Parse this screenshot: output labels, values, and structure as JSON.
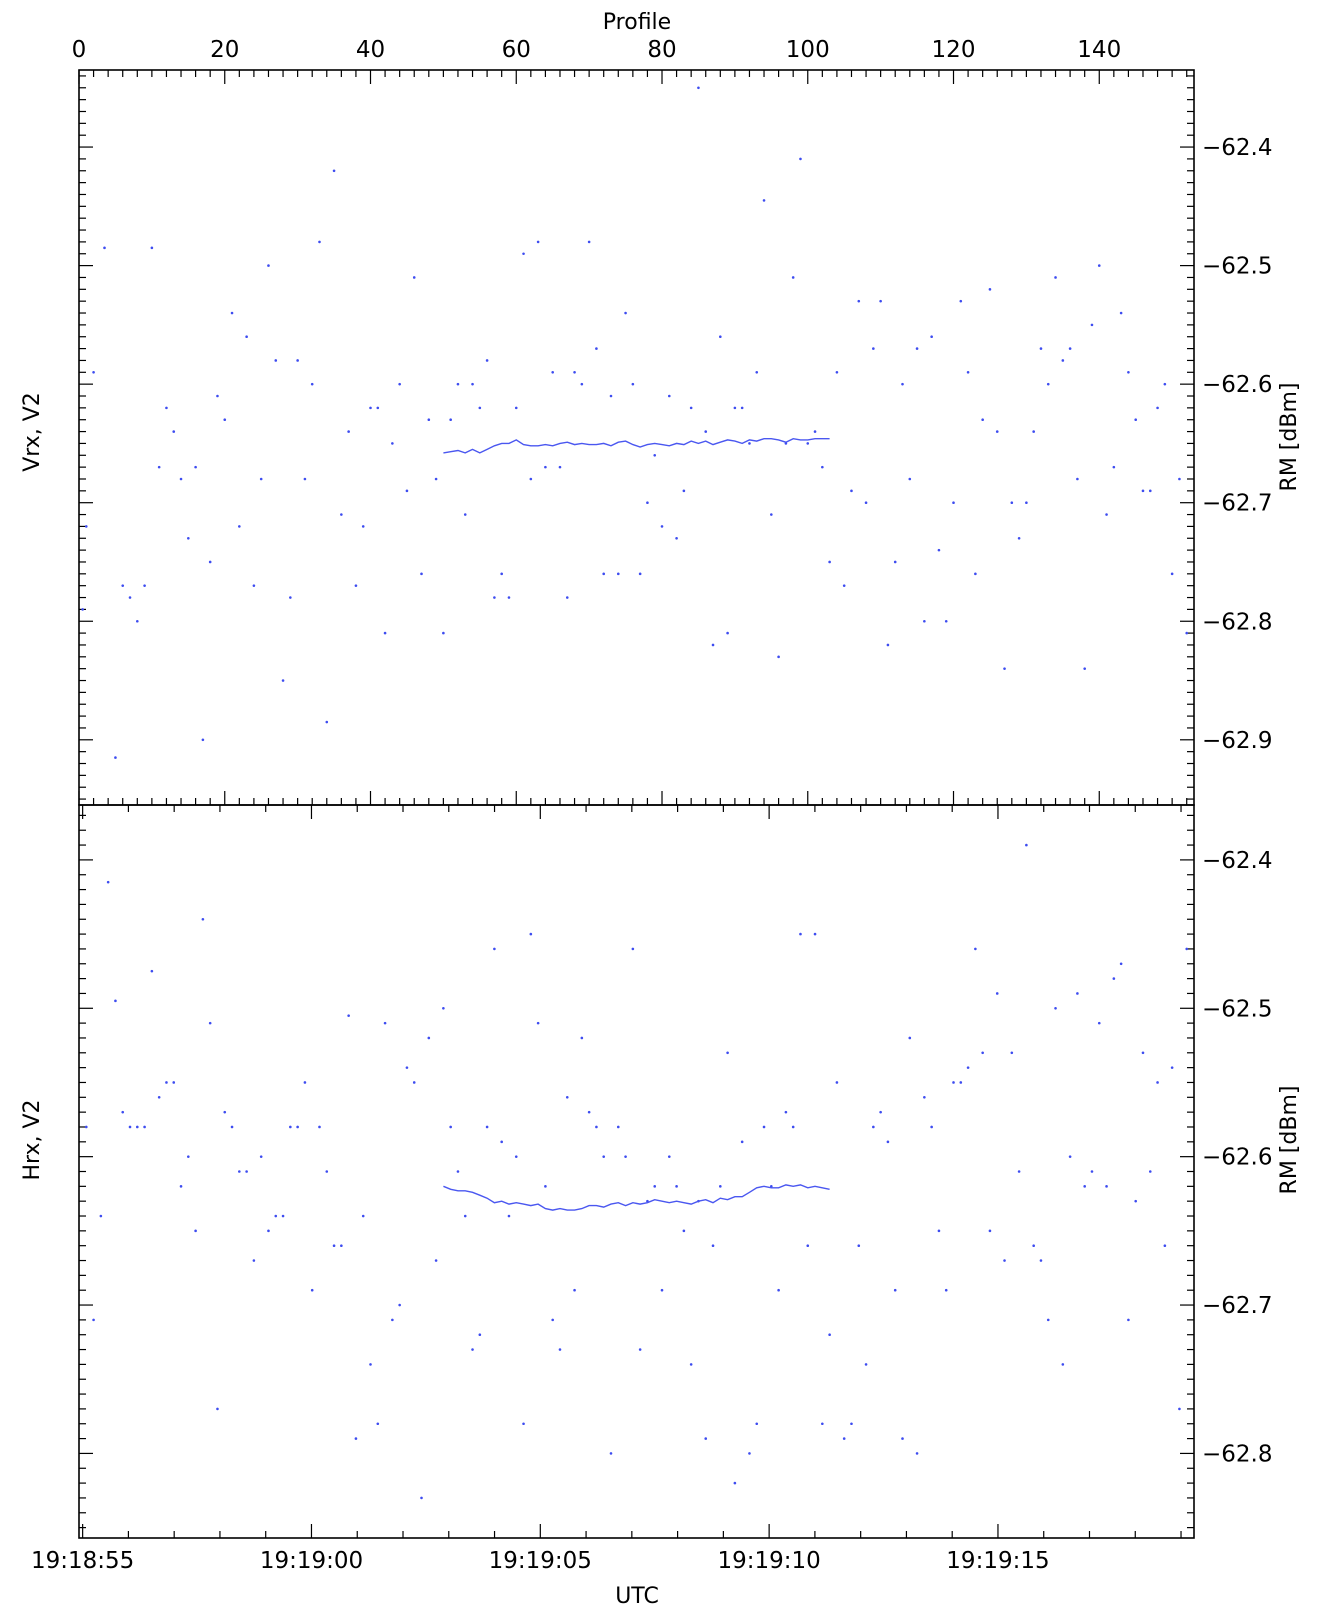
{
  "top_axis": {
    "label": "Profile",
    "tick_labels": [
      "0",
      "20",
      "40",
      "60",
      "80",
      "100",
      "120",
      "140"
    ],
    "range": [
      0,
      153
    ]
  },
  "bottom_axis": {
    "label": "UTC",
    "tick_labels": [
      "19:18:55",
      "19:19:00",
      "19:19:05",
      "19:19:10",
      "19:19:15"
    ]
  },
  "chart_data": [
    {
      "type": "scatter",
      "panel": "top",
      "ylabel_left": "Vrx, V2",
      "ylabel_right": "RM [dBm]",
      "ylim": [
        -62.955,
        -62.335
      ],
      "yticks": [
        -62.4,
        -62.5,
        -62.6,
        -62.7,
        -62.8,
        -62.9
      ],
      "ytick_labels": [
        "−62.4",
        "−62.5",
        "−62.6",
        "−62.7",
        "−62.8",
        "−62.9"
      ],
      "series": [
        {
          "kind": "points",
          "x": [
            0.5,
            1,
            2,
            3.5,
            5,
            6,
            7,
            8,
            9,
            10,
            11,
            12,
            13,
            14,
            15,
            16,
            17,
            18,
            19,
            20,
            21,
            22,
            23,
            24,
            25,
            26,
            27,
            28,
            29,
            30,
            31,
            32,
            33,
            34,
            35,
            36,
            37,
            38,
            39,
            40,
            41,
            42,
            43,
            44,
            45,
            46,
            47,
            48,
            49,
            50,
            51,
            52,
            53,
            54,
            55,
            56,
            57,
            58,
            59,
            60,
            61,
            62,
            63,
            64,
            65,
            66,
            67,
            68,
            69,
            70,
            71,
            72,
            73,
            74,
            75,
            76,
            77,
            78,
            79,
            80,
            81,
            82,
            83,
            84,
            85,
            86,
            87,
            88,
            89,
            90,
            91,
            92,
            93,
            94,
            95,
            96,
            97,
            98,
            99,
            100,
            101,
            102,
            103,
            104,
            105,
            106,
            107,
            108,
            109,
            110,
            111,
            112,
            113,
            114,
            115,
            116,
            117,
            118,
            119,
            120,
            121,
            122,
            123,
            124,
            125,
            126,
            127,
            128,
            129,
            130,
            131,
            132,
            133,
            134,
            135,
            136,
            137,
            138,
            139,
            140,
            141,
            142,
            143,
            144,
            145,
            146,
            147,
            148,
            149,
            150,
            151,
            152
          ],
          "y": [
            -62.79,
            -62.72,
            -62.59,
            -62.485,
            -62.915,
            -62.77,
            -62.78,
            -62.8,
            -62.77,
            -62.485,
            -62.67,
            -62.62,
            -62.64,
            -62.68,
            -62.73,
            -62.67,
            -62.9,
            -62.75,
            -62.61,
            -62.63,
            -62.54,
            -62.72,
            -62.56,
            -62.77,
            -62.68,
            -62.5,
            -62.58,
            -62.85,
            -62.78,
            -62.58,
            -62.68,
            -62.6,
            -62.48,
            -62.885,
            -62.42,
            -62.71,
            -62.64,
            -62.77,
            -62.72,
            -62.62,
            -62.62,
            -62.81,
            -62.65,
            -62.6,
            -62.69,
            -62.51,
            -62.76,
            -62.63,
            -62.68,
            -62.81,
            -62.63,
            -62.6,
            -62.71,
            -62.6,
            -62.62,
            -62.58,
            -62.78,
            -62.76,
            -62.78,
            -62.62,
            -62.49,
            -62.68,
            -62.48,
            -62.67,
            -62.59,
            -62.67,
            -62.78,
            -62.59,
            -62.6,
            -62.48,
            -62.57,
            -62.76,
            -62.61,
            -62.76,
            -62.54,
            -62.6,
            -62.76,
            -62.7,
            -62.66,
            -62.72,
            -62.61,
            -62.73,
            -62.69,
            -62.62,
            -62.35,
            -62.64,
            -62.82,
            -62.56,
            -62.81,
            -62.62,
            -62.62,
            -62.65,
            -62.59,
            -62.445,
            -62.71,
            -62.83,
            -62.65,
            -62.51,
            -62.41,
            -62.65,
            -62.64,
            -62.67,
            -62.75,
            -62.59,
            -62.77,
            -62.69,
            -62.53,
            -62.7,
            -62.57,
            -62.53,
            -62.82,
            -62.75,
            -62.6,
            -62.68,
            -62.57,
            -62.8,
            -62.56,
            -62.74,
            -62.8,
            -62.7,
            -62.53,
            -62.59,
            -62.76,
            -62.63,
            -62.52,
            -62.64,
            -62.84,
            -62.7,
            -62.73,
            -62.7,
            -62.64,
            -62.57,
            -62.6,
            -62.51,
            -62.58,
            -62.57,
            -62.68,
            -62.84,
            -62.55,
            -62.5,
            -62.71,
            -62.67,
            -62.54,
            -62.59,
            -62.63,
            -62.69,
            -62.69,
            -62.62,
            -62.6,
            -62.76,
            -62.68,
            -62.81
          ]
        },
        {
          "kind": "line",
          "x": [
            50,
            51,
            52,
            53,
            54,
            55,
            56,
            57,
            58,
            59,
            60,
            61,
            62,
            63,
            64,
            65,
            66,
            67,
            68,
            69,
            70,
            71,
            72,
            73,
            74,
            75,
            76,
            77,
            78,
            79,
            80,
            81,
            82,
            83,
            84,
            85,
            86,
            87,
            88,
            89,
            90,
            91,
            92,
            93,
            94,
            95,
            96,
            97,
            98,
            99,
            100,
            101,
            102,
            103
          ],
          "y": [
            -62.658,
            -62.657,
            -62.656,
            -62.658,
            -62.655,
            -62.658,
            -62.655,
            -62.652,
            -62.65,
            -62.65,
            -62.647,
            -62.651,
            -62.652,
            -62.652,
            -62.651,
            -62.652,
            -62.65,
            -62.649,
            -62.651,
            -62.65,
            -62.651,
            -62.651,
            -62.65,
            -62.652,
            -62.649,
            -62.648,
            -62.651,
            -62.653,
            -62.651,
            -62.65,
            -62.651,
            -62.652,
            -62.65,
            -62.651,
            -62.648,
            -62.65,
            -62.648,
            -62.651,
            -62.649,
            -62.647,
            -62.648,
            -62.65,
            -62.647,
            -62.648,
            -62.646,
            -62.646,
            -62.647,
            -62.649,
            -62.646,
            -62.647,
            -62.647,
            -62.646,
            -62.646,
            -62.646
          ]
        }
      ]
    },
    {
      "type": "scatter",
      "panel": "bottom",
      "ylabel_left": "Hrx, V2",
      "ylabel_right": "RM [dBm]",
      "ylim": [
        -62.857,
        -62.363
      ],
      "yticks": [
        -62.4,
        -62.5,
        -62.6,
        -62.7,
        -62.8
      ],
      "ytick_labels": [
        "−62.4",
        "−62.5",
        "−62.6",
        "−62.7",
        "−62.8"
      ],
      "series": [
        {
          "kind": "points",
          "x": [
            1,
            2,
            3,
            4,
            5,
            6,
            7,
            8,
            9,
            10,
            11,
            12,
            13,
            14,
            15,
            16,
            17,
            18,
            19,
            20,
            21,
            22,
            23,
            24,
            25,
            26,
            27,
            28,
            29,
            30,
            31,
            32,
            33,
            34,
            35,
            36,
            37,
            38,
            39,
            40,
            41,
            42,
            43,
            44,
            45,
            46,
            47,
            48,
            49,
            50,
            51,
            52,
            53,
            54,
            55,
            56,
            57,
            58,
            59,
            60,
            61,
            62,
            63,
            64,
            65,
            66,
            67,
            68,
            69,
            70,
            71,
            72,
            73,
            74,
            75,
            76,
            77,
            78,
            79,
            80,
            81,
            82,
            83,
            84,
            85,
            86,
            87,
            88,
            89,
            90,
            91,
            92,
            93,
            94,
            95,
            96,
            97,
            98,
            99,
            100,
            101,
            102,
            103,
            104,
            105,
            106,
            107,
            108,
            109,
            110,
            111,
            112,
            113,
            114,
            115,
            116,
            117,
            118,
            119,
            120,
            121,
            122,
            123,
            124,
            125,
            126,
            127,
            128,
            129,
            130,
            131,
            132,
            133,
            134,
            135,
            136,
            137,
            138,
            139,
            140,
            141,
            142,
            143,
            144,
            145,
            146,
            147,
            148,
            149,
            150,
            151,
            152
          ],
          "y": [
            -62.58,
            -62.71,
            -62.64,
            -62.415,
            -62.495,
            -62.57,
            -62.58,
            -62.58,
            -62.58,
            -62.475,
            -62.56,
            -62.55,
            -62.55,
            -62.62,
            -62.6,
            -62.65,
            -62.44,
            -62.51,
            -62.77,
            -62.57,
            -62.58,
            -62.61,
            -62.61,
            -62.67,
            -62.6,
            -62.65,
            -62.64,
            -62.64,
            -62.58,
            -62.58,
            -62.55,
            -62.69,
            -62.58,
            -62.61,
            -62.66,
            -62.66,
            -62.505,
            -62.79,
            -62.64,
            -62.74,
            -62.78,
            -62.51,
            -62.71,
            -62.7,
            -62.54,
            -62.55,
            -62.83,
            -62.52,
            -62.67,
            -62.5,
            -62.58,
            -62.61,
            -62.64,
            -62.73,
            -62.72,
            -62.58,
            -62.46,
            -62.59,
            -62.64,
            -62.6,
            -62.78,
            -62.45,
            -62.51,
            -62.62,
            -62.71,
            -62.73,
            -62.56,
            -62.69,
            -62.52,
            -62.57,
            -62.58,
            -62.6,
            -62.8,
            -62.58,
            -62.6,
            -62.46,
            -62.73,
            -62.63,
            -62.62,
            -62.69,
            -62.6,
            -62.62,
            -62.65,
            -62.74,
            -62.63,
            -62.79,
            -62.66,
            -62.62,
            -62.53,
            -62.82,
            -62.59,
            -62.8,
            -62.78,
            -62.58,
            -62.62,
            -62.69,
            -62.57,
            -62.58,
            -62.45,
            -62.66,
            -62.45,
            -62.78,
            -62.72,
            -62.55,
            -62.79,
            -62.78,
            -62.66,
            -62.74,
            -62.58,
            -62.57,
            -62.59,
            -62.69,
            -62.79,
            -62.52,
            -62.8,
            -62.56,
            -62.58,
            -62.65,
            -62.69,
            -62.55,
            -62.55,
            -62.54,
            -62.46,
            -62.53,
            -62.65,
            -62.49,
            -62.67,
            -62.53,
            -62.61,
            -62.39,
            -62.66,
            -62.67,
            -62.71,
            -62.5,
            -62.74,
            -62.6,
            -62.49,
            -62.62,
            -62.61,
            -62.51,
            -62.62,
            -62.48,
            -62.47,
            -62.71,
            -62.63,
            -62.53,
            -62.61,
            -62.55,
            -62.66,
            -62.54,
            -62.77,
            -62.46
          ]
        },
        {
          "kind": "line",
          "x": [
            50,
            51,
            52,
            53,
            54,
            55,
            56,
            57,
            58,
            59,
            60,
            61,
            62,
            63,
            64,
            65,
            66,
            67,
            68,
            69,
            70,
            71,
            72,
            73,
            74,
            75,
            76,
            77,
            78,
            79,
            80,
            81,
            82,
            83,
            84,
            85,
            86,
            87,
            88,
            89,
            90,
            91,
            92,
            93,
            94,
            95,
            96,
            97,
            98,
            99,
            100,
            101,
            102,
            103
          ],
          "y": [
            -62.62,
            -62.622,
            -62.623,
            -62.623,
            -62.624,
            -62.626,
            -62.628,
            -62.631,
            -62.63,
            -62.632,
            -62.631,
            -62.632,
            -62.633,
            -62.632,
            -62.635,
            -62.636,
            -62.635,
            -62.636,
            -62.636,
            -62.635,
            -62.633,
            -62.633,
            -62.634,
            -62.632,
            -62.631,
            -62.633,
            -62.631,
            -62.632,
            -62.631,
            -62.629,
            -62.63,
            -62.631,
            -62.63,
            -62.631,
            -62.632,
            -62.63,
            -62.629,
            -62.631,
            -62.628,
            -62.629,
            -62.627,
            -62.627,
            -62.624,
            -62.621,
            -62.62,
            -62.621,
            -62.621,
            -62.619,
            -62.62,
            -62.619,
            -62.621,
            -62.62,
            -62.621,
            -62.622
          ]
        }
      ]
    }
  ]
}
